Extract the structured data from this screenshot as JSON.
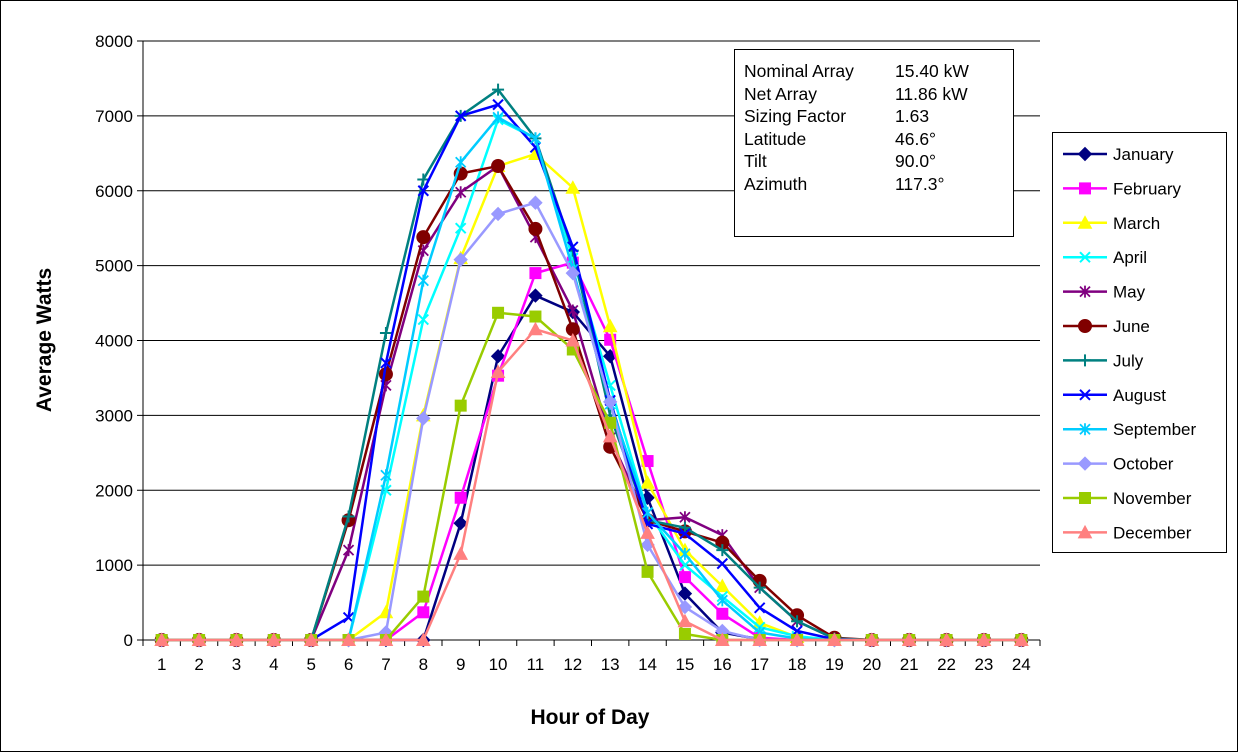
{
  "chart_data": {
    "type": "line",
    "xlabel": "Hour of Day",
    "ylabel": "Average Watts",
    "ylim": [
      0,
      8000
    ],
    "yticks": [
      0,
      1000,
      2000,
      3000,
      4000,
      5000,
      6000,
      7000,
      8000
    ],
    "x": [
      1,
      2,
      3,
      4,
      5,
      6,
      7,
      8,
      9,
      10,
      11,
      12,
      13,
      14,
      15,
      16,
      17,
      18,
      19,
      20,
      21,
      22,
      23,
      24
    ],
    "grid": "horizontal",
    "legend_position": "right",
    "series": [
      {
        "name": "January",
        "color": "#000080",
        "marker": "diamond",
        "values": [
          0,
          0,
          0,
          0,
          0,
          0,
          0,
          0,
          1560,
          3790,
          4600,
          4380,
          3790,
          1900,
          620,
          100,
          10,
          0,
          0,
          0,
          0,
          0,
          0,
          0
        ]
      },
      {
        "name": "February",
        "color": "#FF00FF",
        "marker": "square",
        "values": [
          0,
          0,
          0,
          0,
          0,
          0,
          0,
          370,
          1900,
          3530,
          4900,
          5040,
          4010,
          2390,
          840,
          350,
          30,
          0,
          0,
          0,
          0,
          0,
          0,
          0
        ]
      },
      {
        "name": "March",
        "color": "#FFFF00",
        "marker": "triangle",
        "values": [
          0,
          0,
          0,
          0,
          0,
          0,
          370,
          3000,
          5100,
          6330,
          6490,
          6040,
          4190,
          2100,
          1200,
          720,
          230,
          40,
          0,
          0,
          0,
          0,
          0,
          0
        ]
      },
      {
        "name": "April",
        "color": "#00FFFF",
        "marker": "x",
        "values": [
          0,
          0,
          0,
          0,
          0,
          0,
          2000,
          4280,
          5500,
          6950,
          6700,
          5100,
          3400,
          1700,
          1000,
          580,
          170,
          50,
          0,
          0,
          0,
          0,
          0,
          0
        ]
      },
      {
        "name": "May",
        "color": "#800080",
        "marker": "star",
        "values": [
          0,
          0,
          0,
          0,
          0,
          1200,
          3400,
          5200,
          5980,
          6330,
          5380,
          4400,
          2700,
          1600,
          1640,
          1400,
          700,
          250,
          20,
          0,
          0,
          0,
          0,
          0
        ]
      },
      {
        "name": "June",
        "color": "#800000",
        "marker": "circle",
        "values": [
          0,
          0,
          0,
          0,
          0,
          1600,
          3550,
          5380,
          6230,
          6330,
          5490,
          4150,
          2580,
          1600,
          1450,
          1300,
          790,
          330,
          30,
          0,
          0,
          0,
          0,
          0
        ]
      },
      {
        "name": "July",
        "color": "#008080",
        "marker": "plus",
        "values": [
          0,
          0,
          0,
          0,
          0,
          1650,
          4100,
          6150,
          7000,
          7350,
          6700,
          5200,
          3000,
          1600,
          1500,
          1200,
          700,
          250,
          20,
          0,
          0,
          0,
          0,
          0
        ]
      },
      {
        "name": "August",
        "color": "#0000FF",
        "marker": "x",
        "values": [
          0,
          0,
          0,
          0,
          0,
          300,
          3700,
          6000,
          7000,
          7150,
          6580,
          5250,
          3200,
          1550,
          1420,
          1020,
          430,
          120,
          10,
          0,
          0,
          0,
          0,
          0
        ]
      },
      {
        "name": "September",
        "color": "#00CCFF",
        "marker": "star",
        "values": [
          0,
          0,
          0,
          0,
          0,
          0,
          2200,
          4800,
          6380,
          6980,
          6700,
          4950,
          3150,
          1700,
          1150,
          530,
          100,
          20,
          0,
          0,
          0,
          0,
          0,
          0
        ]
      },
      {
        "name": "October",
        "color": "#9999FF",
        "marker": "diamond",
        "values": [
          0,
          0,
          0,
          0,
          0,
          0,
          100,
          2960,
          5080,
          5690,
          5840,
          4900,
          3180,
          1270,
          440,
          120,
          0,
          0,
          0,
          0,
          0,
          0,
          0,
          0
        ]
      },
      {
        "name": "November",
        "color": "#99CC00",
        "marker": "square",
        "values": [
          0,
          0,
          0,
          0,
          0,
          0,
          0,
          580,
          3130,
          4370,
          4320,
          3880,
          2900,
          910,
          80,
          0,
          0,
          0,
          0,
          0,
          0,
          0,
          0,
          0
        ]
      },
      {
        "name": "December",
        "color": "#FF8080",
        "marker": "triangle",
        "values": [
          0,
          0,
          0,
          0,
          0,
          0,
          0,
          0,
          1150,
          3580,
          4150,
          4000,
          2720,
          1430,
          250,
          0,
          0,
          0,
          0,
          0,
          0,
          0,
          0,
          0
        ]
      }
    ]
  },
  "info_box": [
    {
      "label": "Nominal Array",
      "value": "15.40 kW"
    },
    {
      "label": "Net Array",
      "value": "11.86 kW"
    },
    {
      "label": "Sizing Factor",
      "value": "1.63"
    },
    {
      "label": "Latitude",
      "value": "46.6°"
    },
    {
      "label": "Tilt",
      "value": "90.0°"
    },
    {
      "label": "Azimuth",
      "value": "117.3°"
    }
  ]
}
